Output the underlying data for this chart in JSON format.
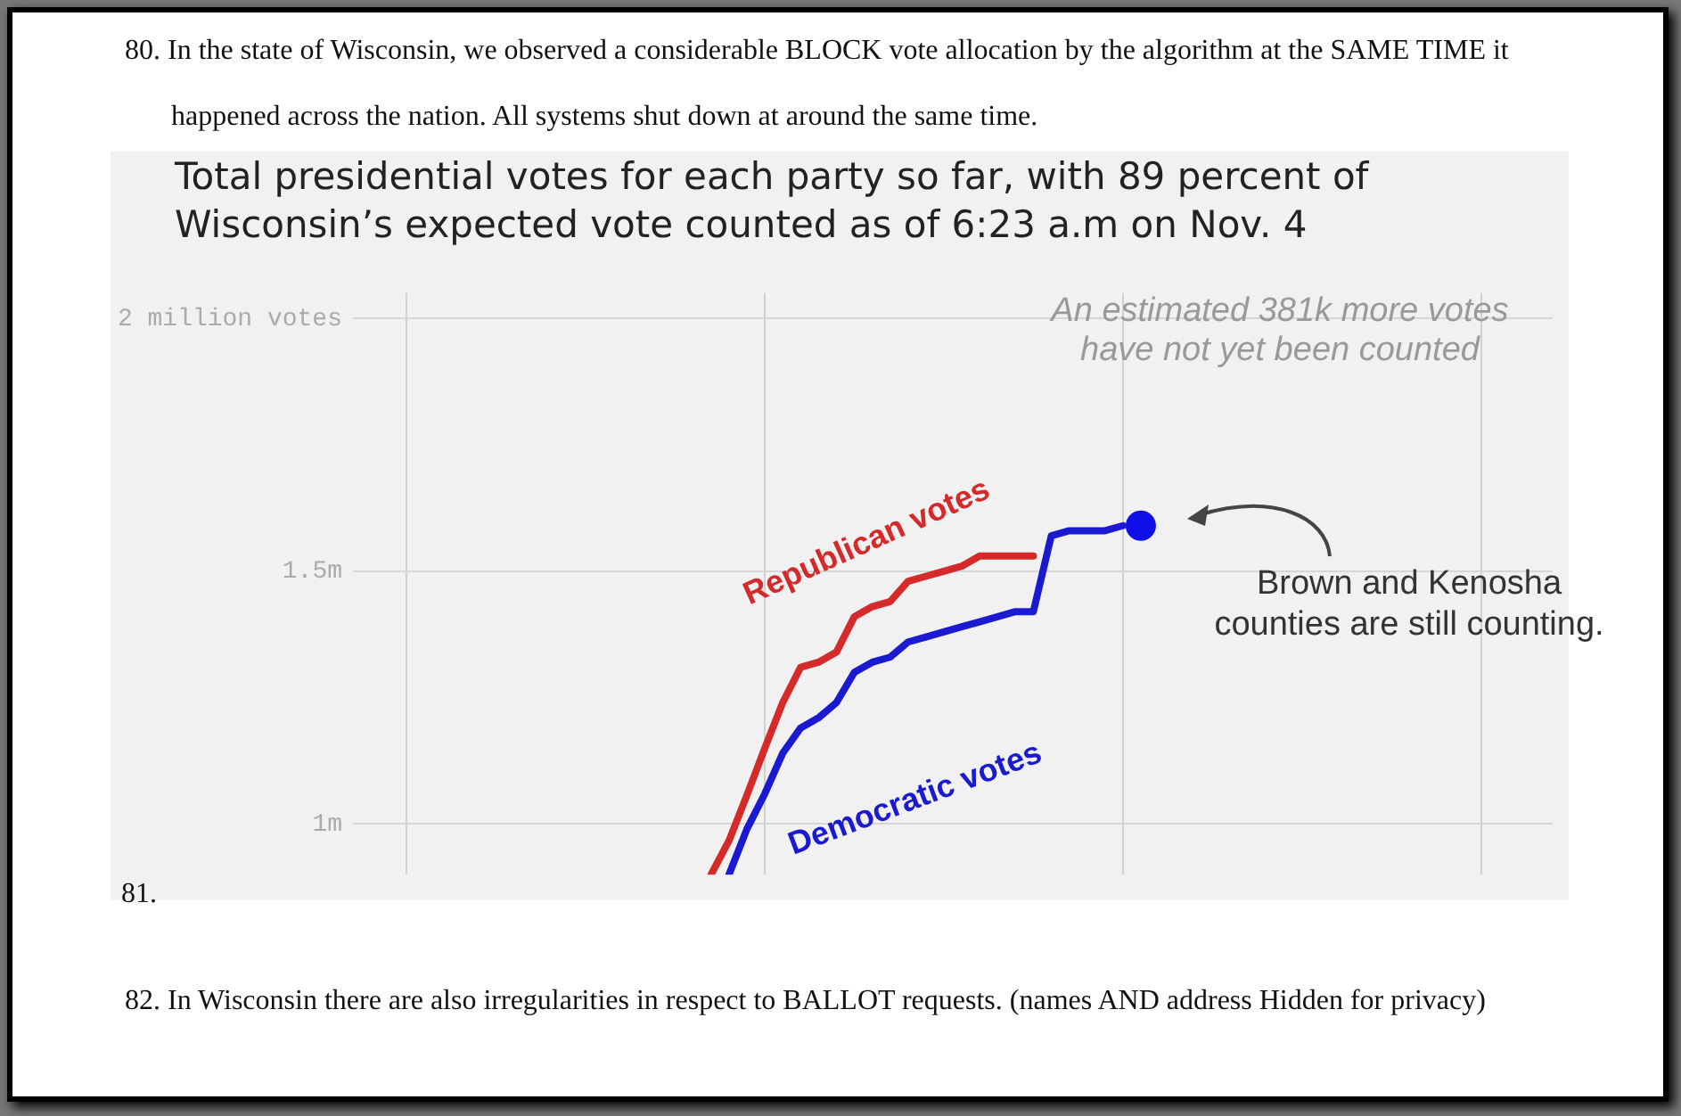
{
  "chart_data": {
    "type": "line",
    "title": "Total presidential votes for each party so far, with 89 percent of Wisconsin’s expected vote counted as of 6:23 a.m on Nov. 4",
    "categories": [
      null,
      null,
      null,
      null,
      null,
      null,
      null,
      null,
      null,
      null,
      null,
      null,
      null,
      null,
      null,
      null,
      null,
      null,
      null,
      null,
      null,
      null,
      null,
      null,
      null,
      null,
      null,
      null,
      null,
      null,
      null,
      null,
      null,
      null,
      null,
      null,
      null,
      null,
      null,
      null,
      null,
      null,
      null,
      null,
      null,
      null,
      null,
      null,
      null,
      null,
      null,
      null,
      null,
      null,
      null,
      null,
      null,
      null,
      null,
      null,
      null,
      null,
      null,
      null,
      null,
      null,
      null,
      null
    ],
    "series": [
      {
        "name": "Republican votes",
        "color": "#d42a2a",
        "values": [
          null,
          null,
          null,
          null,
          null,
          null,
          null,
          null,
          null,
          null,
          null,
          null,
          null,
          null,
          null,
          null,
          null,
          null,
          null,
          null,
          0.9,
          0.967,
          1.057,
          1.15,
          1.24,
          1.31,
          1.32,
          1.34,
          1.41,
          1.43,
          1.44,
          1.48,
          1.49,
          1.5,
          1.51,
          1.53,
          1.53,
          1.53,
          1.53,
          null,
          null,
          null,
          null,
          null,
          null,
          null,
          null,
          null,
          null,
          null,
          null,
          null,
          null,
          null,
          null,
          null,
          null,
          null,
          null,
          null,
          null,
          null,
          null,
          null,
          null,
          null,
          null,
          null
        ]
      },
      {
        "name": "Democratic votes",
        "color": "#1a1ad0",
        "values": [
          null,
          null,
          null,
          null,
          null,
          null,
          null,
          null,
          null,
          null,
          null,
          null,
          null,
          null,
          null,
          null,
          null,
          null,
          null,
          null,
          null,
          0.9,
          0.99,
          1.06,
          1.14,
          1.19,
          1.21,
          1.24,
          1.3,
          1.32,
          1.33,
          1.36,
          1.37,
          1.38,
          1.39,
          1.4,
          1.41,
          1.42,
          1.42,
          1.57,
          1.58,
          1.58,
          1.58,
          1.59,
          null,
          null,
          null,
          null,
          null,
          null,
          null,
          null,
          null,
          null,
          null,
          null,
          null,
          null,
          null,
          null,
          null,
          null,
          null,
          null,
          null,
          null,
          null,
          null
        ]
      },
      {
        "type": "scatter",
        "color": "#1010e8",
        "values": [
          null,
          null,
          null,
          null,
          null,
          null,
          null,
          null,
          null,
          null,
          null,
          null,
          null,
          null,
          null,
          null,
          null,
          null,
          null,
          null,
          null,
          null,
          null,
          null,
          null,
          null,
          null,
          null,
          null,
          null,
          null,
          null,
          null,
          null,
          null,
          null,
          null,
          null,
          null,
          null,
          null,
          null,
          null,
          null,
          1.59,
          null,
          null,
          null,
          null,
          null,
          null,
          null,
          null,
          null,
          null,
          null,
          null,
          null,
          null,
          null,
          null,
          null,
          null,
          null,
          null,
          null,
          null,
          null
        ]
      }
    ],
    "ylim": [
      0.9,
      2.05
    ],
    "yticks": [
      {
        "value": 1,
        "label": "1m"
      },
      {
        "value": 1.5,
        "label": "1.5m"
      },
      {
        "value": 2,
        "label": "2 million votes"
      }
    ],
    "tick_labels": "y",
    "grid": true,
    "legend": false,
    "line_style": "solid",
    "annotations": [
      "80. In the state of Wisconsin, we observed a considerable BLOCK vote allocation by the algorithm at the SAME TIME it happened across the nation. All systems shut down at around the same time.",
      "81.",
      "82. In Wisconsin there are also irregularities in respect to BALLOT requests. (names AND address Hidden for privacy)",
      "An estimated 381k more votes have not yet been counted",
      "Brown and Kenosha counties are still counting."
    ]
  }
}
